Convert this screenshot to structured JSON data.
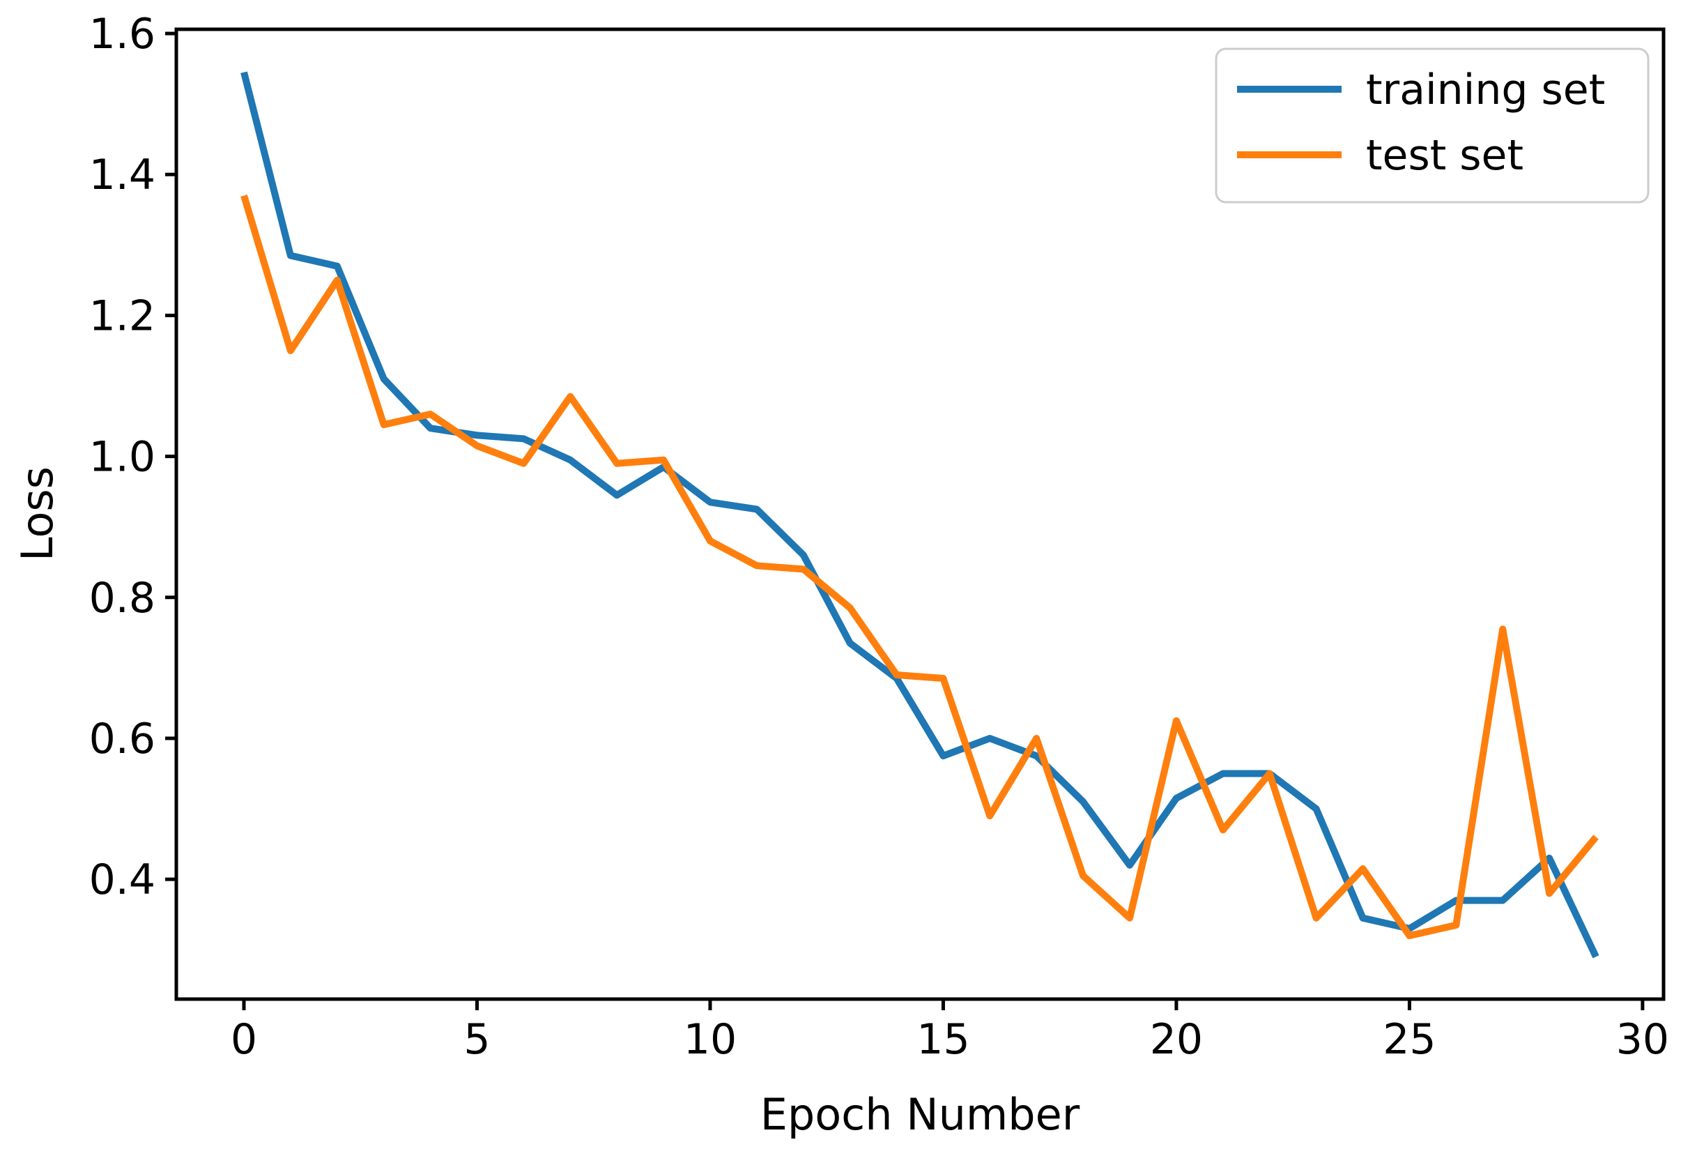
{
  "chart_data": {
    "type": "line",
    "title": "",
    "xlabel": "Epoch Number",
    "ylabel": "Loss",
    "x": [
      0,
      1,
      2,
      3,
      4,
      5,
      6,
      7,
      8,
      9,
      10,
      11,
      12,
      13,
      14,
      15,
      16,
      17,
      18,
      19,
      20,
      21,
      22,
      23,
      24,
      25,
      26,
      27,
      28,
      29
    ],
    "series": [
      {
        "name": "training set",
        "color": "#1f77b4",
        "values": [
          1.545,
          1.285,
          1.27,
          1.11,
          1.04,
          1.03,
          1.025,
          0.995,
          0.945,
          0.985,
          0.935,
          0.925,
          0.86,
          0.735,
          0.685,
          0.575,
          0.6,
          0.575,
          0.51,
          0.42,
          0.515,
          0.55,
          0.55,
          0.5,
          0.345,
          0.33,
          0.37,
          0.37,
          0.43,
          0.29
        ]
      },
      {
        "name": "test set",
        "color": "#ff7f0e",
        "values": [
          1.37,
          1.15,
          1.25,
          1.045,
          1.06,
          1.015,
          0.99,
          1.085,
          0.99,
          0.995,
          0.88,
          0.845,
          0.84,
          0.785,
          0.69,
          0.685,
          0.49,
          0.6,
          0.405,
          0.345,
          0.625,
          0.47,
          0.55,
          0.345,
          0.415,
          0.32,
          0.335,
          0.755,
          0.38,
          0.46
        ]
      }
    ],
    "xlim": [
      -1.45,
      30.45
    ],
    "ylim": [
      0.23,
      1.606
    ],
    "xticks": [
      0,
      5,
      10,
      15,
      20,
      25,
      30
    ],
    "yticks": [
      0.4,
      0.6,
      0.8,
      1.0,
      1.2,
      1.4,
      1.6
    ],
    "grid": false,
    "legend_position": "upper right",
    "axis_color": "#000000",
    "background_color": "#ffffff",
    "legend_border_color": "#cccccc"
  }
}
